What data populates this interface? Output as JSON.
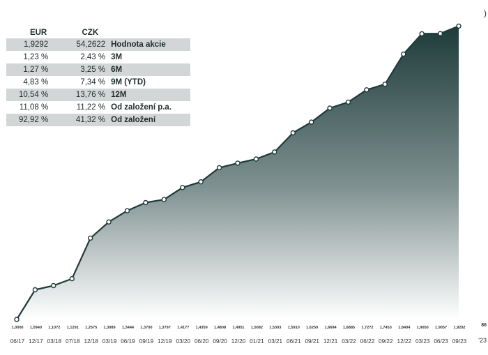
{
  "table": {
    "headers": [
      "EUR",
      "CZK",
      ""
    ],
    "rows": [
      {
        "eur": "1,9292",
        "czk": "54,2622",
        "label": "Hodnota akcie"
      },
      {
        "eur": "1,23 %",
        "czk": "2,43 %",
        "label": "3M"
      },
      {
        "eur": "1,27 %",
        "czk": "3,25 %",
        "label": "6M"
      },
      {
        "eur": "4,83 %",
        "czk": "7,34 %",
        "label": "9M (YTD)"
      },
      {
        "eur": "10,54 %",
        "czk": "13,76 %",
        "label": "12M"
      },
      {
        "eur": "11,08 %",
        "czk": "11,22 %",
        "label": "Od založení p.a."
      },
      {
        "eur": "92,92 %",
        "czk": "41,32 %",
        "label": "Od založení"
      }
    ]
  },
  "chart_data": {
    "type": "area",
    "categories": [
      "06/17",
      "12/17",
      "03/18",
      "07/18",
      "12/18",
      "03/19",
      "06/19",
      "09/19",
      "12/19",
      "03/20",
      "06/20",
      "09/20",
      "12/20",
      "01/21",
      "03/21",
      "06/21",
      "09/21",
      "12/21",
      "03/22",
      "06/22",
      "09/22",
      "12/22",
      "03/23",
      "06/23",
      "09/23"
    ],
    "values": [
      1.0,
      1.094,
      1.1072,
      1.1291,
      1.2575,
      1.3089,
      1.3444,
      1.37,
      1.3797,
      1.4177,
      1.4359,
      1.4808,
      1.4951,
      1.5082,
      1.5303,
      1.591,
      1.625,
      1.6694,
      1.6885,
      1.7272,
      1.7453,
      1.8404,
      1.905,
      1.9057,
      1.9292
    ],
    "value_labels": [
      "1,0000",
      "1,0940",
      "1,1072",
      "1,1291",
      "1,2575",
      "1,3089",
      "1,3444",
      "1,3700",
      "1,3797",
      "1,4177",
      "1,4359",
      "1,4808",
      "1,4951",
      "1,5082",
      "1,5303",
      "1,5910",
      "1,6250",
      "1,6694",
      "1,6885",
      "1,7272",
      "1,7453",
      "1,8404",
      "1,9050",
      "1,9057",
      "1,9292"
    ],
    "ylim": [
      1.0,
      1.95
    ],
    "title": "",
    "xlabel": "",
    "ylabel": "",
    "edge_value_label": "86",
    "edge_category_label": "'23",
    "edge_marker": ")",
    "colors": {
      "fill_top": "#1d3b3a",
      "fill_bottom": "#ffffff",
      "line": "#1d3b3a",
      "marker_fill": "#ffffff"
    }
  }
}
